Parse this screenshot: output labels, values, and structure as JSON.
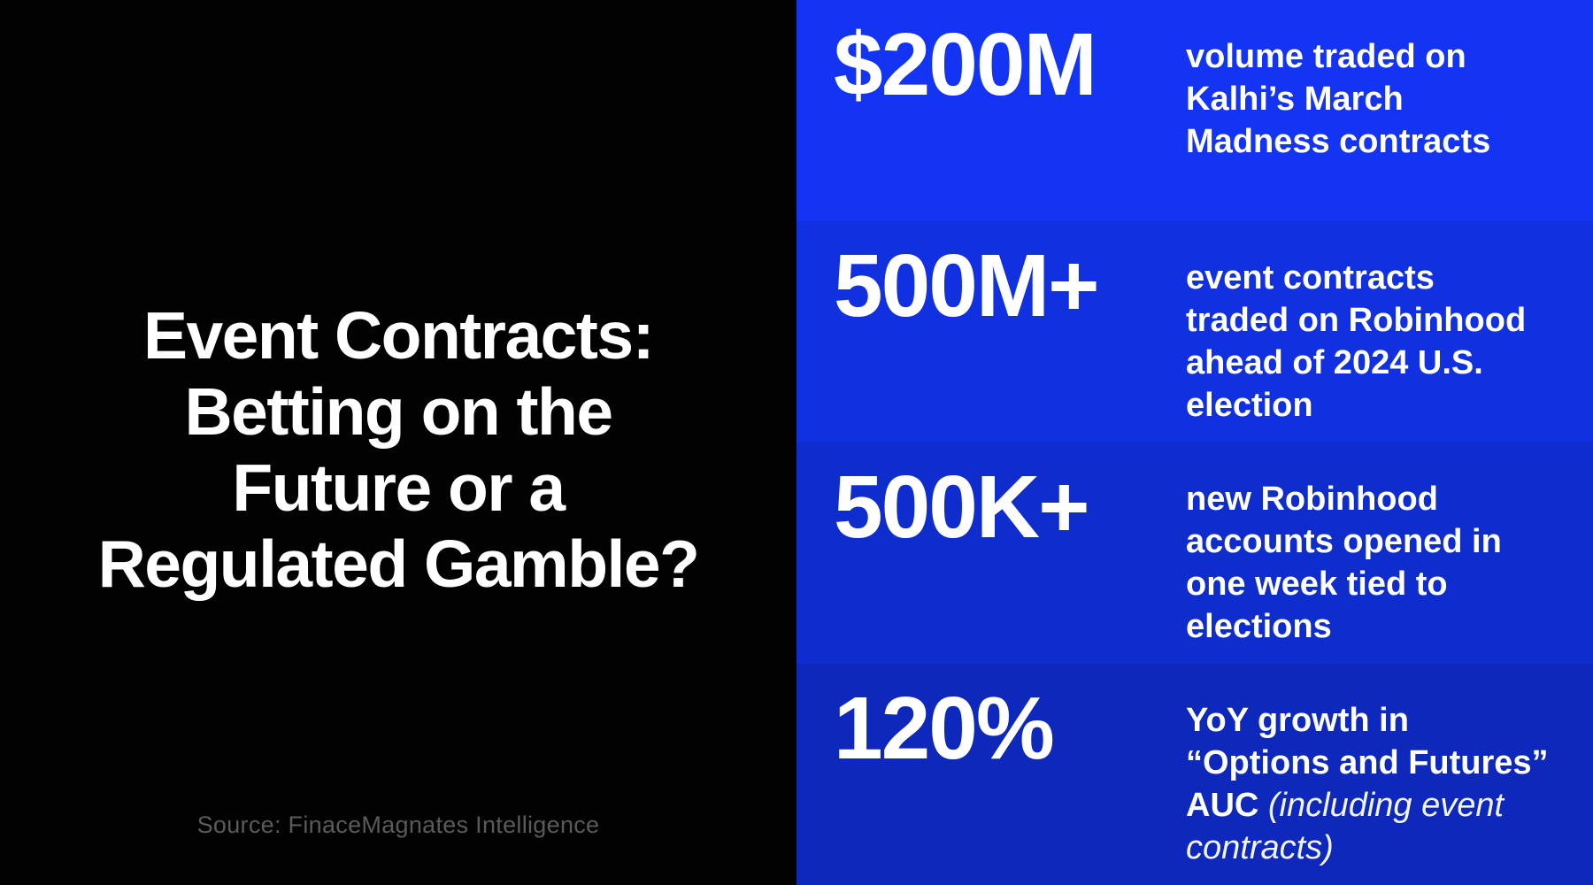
{
  "left_panel": {
    "title": "Event Contracts:\nBetting on the\nFuture or a\nRegulated Gamble?",
    "source": "Source: FinaceMagnates Intelligence"
  },
  "stats": [
    {
      "value": "$200M",
      "desc": "volume traded on\nKalhi’s March\nMadness contracts",
      "desc_italic": "",
      "bg": "#1334F2"
    },
    {
      "value": "500M+",
      "desc": "event contracts\ntraded on Robinhood\nahead of 2024 U.S.\nelection",
      "desc_italic": "",
      "bg": "#1130DF"
    },
    {
      "value": "500K+",
      "desc": "new Robinhood\naccounts opened in\none week tied to\nelections",
      "desc_italic": "",
      "bg": "#0F2CCD"
    },
    {
      "value": "120%",
      "desc": "YoY growth in\n“Options and Futures”\nAUC ",
      "desc_italic": "(including event contracts)",
      "bg": "#0D28BB"
    }
  ],
  "colors": {
    "left_background": "#020202",
    "title_text": "#ffffff",
    "source_text": "#5a5a5a",
    "stat_text": "#ffffff"
  }
}
